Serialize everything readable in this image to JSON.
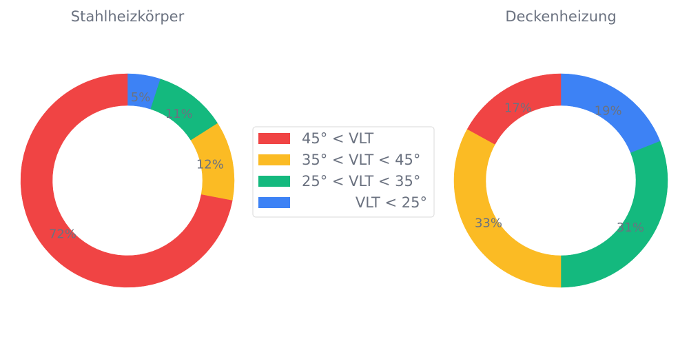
{
  "chart_data": {
    "type": "pie",
    "variant": "donut",
    "legend": {
      "placement": "center",
      "entries": [
        {
          "label": "45° < VLT",
          "color": "#f04444"
        },
        {
          "label": "35° < VLT < 45°",
          "color": "#fbbb24"
        },
        {
          "label": "25° < VLT < 35°",
          "color": "#14b97e"
        },
        {
          "label": "VLT < 25°",
          "color": "#3d82f5"
        }
      ]
    },
    "charts": [
      {
        "title": "Stahlheizkörper",
        "slices": [
          {
            "label": "VLT < 25°",
            "value": 5,
            "text": "5%",
            "color": "#3d82f5"
          },
          {
            "label": "25° < VLT < 35°",
            "value": 11,
            "text": "11%",
            "color": "#14b97e"
          },
          {
            "label": "35° < VLT < 45°",
            "value": 12,
            "text": "12%",
            "color": "#fbbb24"
          },
          {
            "label": "45° < VLT",
            "value": 72,
            "text": "72%",
            "color": "#f04444"
          }
        ]
      },
      {
        "title": "Deckenheizung",
        "slices": [
          {
            "label": "VLT < 25°",
            "value": 19,
            "text": "19%",
            "color": "#3d82f5"
          },
          {
            "label": "25° < VLT < 35°",
            "value": 31,
            "text": "31%",
            "color": "#14b97e"
          },
          {
            "label": "35° < VLT < 45°",
            "value": 33,
            "text": "33%",
            "color": "#fbbb24"
          },
          {
            "label": "45° < VLT",
            "value": 17,
            "text": "17%",
            "color": "#f04444"
          }
        ]
      }
    ]
  }
}
